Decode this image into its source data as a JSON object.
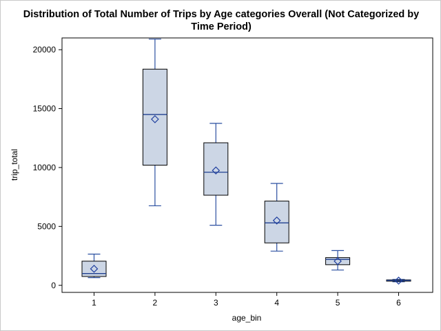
{
  "chart_data": {
    "type": "box",
    "title_line1": "Distribution of Total Number of Trips by Age categories Overall (Not Categorized by",
    "title_line2": "Time Period)",
    "xlabel": "age_bin",
    "ylabel": "trip_total",
    "ylim": [
      -600,
      21000
    ],
    "yticks": [
      0,
      5000,
      10000,
      15000,
      20000
    ],
    "categories": [
      "1",
      "2",
      "3",
      "4",
      "5",
      "6"
    ],
    "boxes": [
      {
        "category": "1",
        "min": 650,
        "q1": 750,
        "median": 1000,
        "q3": 2050,
        "max": 2650,
        "mean": 1400
      },
      {
        "category": "2",
        "min": 6750,
        "q1": 10200,
        "median": 14500,
        "q3": 18350,
        "max": 20900,
        "mean": 14100
      },
      {
        "category": "3",
        "min": 5100,
        "q1": 7650,
        "median": 9600,
        "q3": 12100,
        "max": 13750,
        "mean": 9750
      },
      {
        "category": "4",
        "min": 2900,
        "q1": 3600,
        "median": 5300,
        "q3": 7150,
        "max": 8650,
        "mean": 5500
      },
      {
        "category": "5",
        "min": 1300,
        "q1": 1750,
        "median": 2200,
        "q3": 2350,
        "max": 2950,
        "mean": 2050
      },
      {
        "category": "6",
        "min": 300,
        "q1": 350,
        "median": 420,
        "q3": 460,
        "max": 500,
        "mean": 400
      }
    ],
    "colors": {
      "box_fill": "#ccd6e5",
      "box_stroke": "#000000",
      "whisker": "#2a4fa0",
      "median": "#1f3f8f",
      "mean_marker": "#1f3f9f",
      "axis": "#000000"
    },
    "grid": false,
    "legend": "none"
  }
}
